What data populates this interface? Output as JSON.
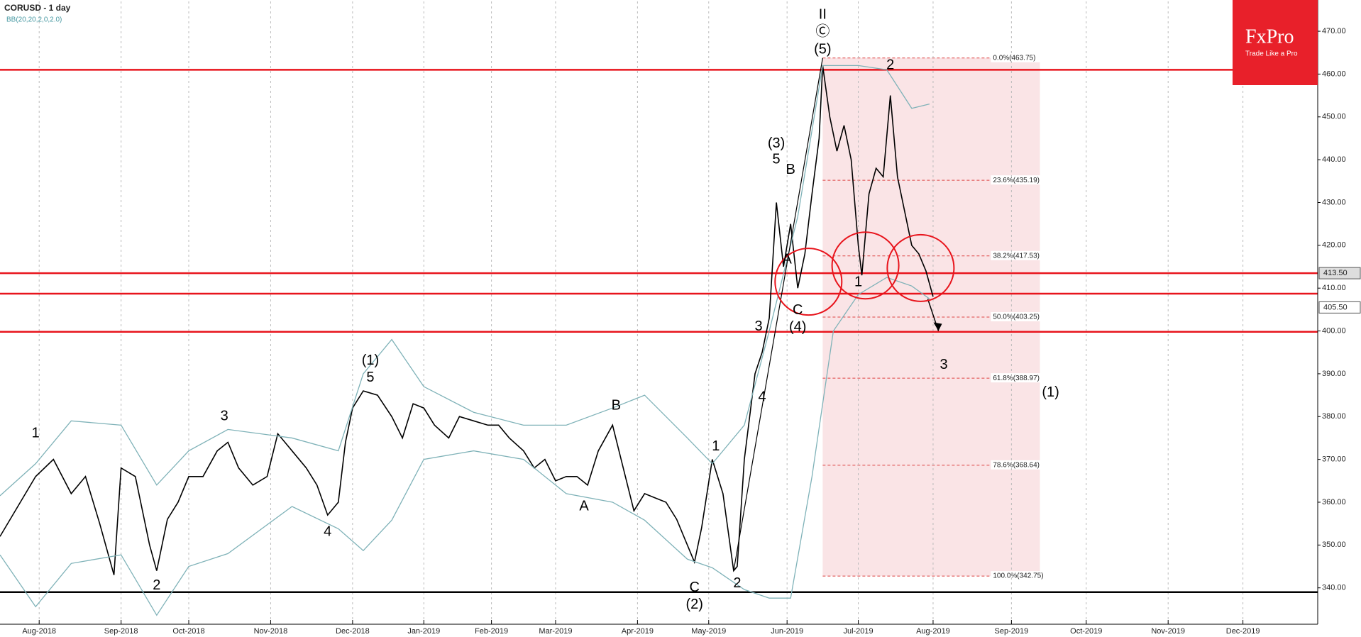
{
  "chart_data": {
    "type": "line",
    "title": "CORUSD - 1 day",
    "subtitle": "BB(20,20,2,0,2.0)",
    "logo": "FxPro",
    "slogan": "Trade Like a Pro",
    "xlim": [
      0,
      370
    ],
    "ylim": [
      331.5,
      477.3
    ],
    "xticks": [
      {
        "value": 11,
        "label": "Aug-2018"
      },
      {
        "value": 34,
        "label": "Sep-2018"
      },
      {
        "value": 53,
        "label": "Oct-2018"
      },
      {
        "value": 76,
        "label": "Nov-2018"
      },
      {
        "value": 99,
        "label": "Dec-2018"
      },
      {
        "value": 119,
        "label": "Jan-2019"
      },
      {
        "value": 138,
        "label": "Feb-2019"
      },
      {
        "value": 156,
        "label": "Mar-2019"
      },
      {
        "value": 179,
        "label": "Apr-2019"
      },
      {
        "value": 199,
        "label": "May-2019"
      },
      {
        "value": 221,
        "label": "Jun-2019"
      },
      {
        "value": 241,
        "label": "Jul-2019"
      },
      {
        "value": 262,
        "label": "Aug-2019"
      },
      {
        "value": 284,
        "label": "Sep-2019"
      },
      {
        "value": 305,
        "label": "Oct-2019"
      },
      {
        "value": 328,
        "label": "Nov-2019"
      },
      {
        "value": 349,
        "label": "Dec-2019"
      }
    ],
    "yticks": [
      {
        "value": 340,
        "label": "340.00"
      },
      {
        "value": 350,
        "label": "350.00"
      },
      {
        "value": 360,
        "label": "360.00"
      },
      {
        "value": 370,
        "label": "370.00"
      },
      {
        "value": 380,
        "label": "380.00"
      },
      {
        "value": 390,
        "label": "390.00"
      },
      {
        "value": 400,
        "label": "400.00"
      },
      {
        "value": 410,
        "label": "410.00"
      },
      {
        "value": 420,
        "label": "420.00"
      },
      {
        "value": 430,
        "label": "430.00"
      },
      {
        "value": 440,
        "label": "440.00"
      },
      {
        "value": 450,
        "label": "450.00"
      },
      {
        "value": 460,
        "label": "460.00"
      },
      {
        "value": 470,
        "label": "470.00"
      }
    ],
    "series": [
      {
        "color": "#000000",
        "x": [
          0,
          10,
          15,
          20,
          24,
          28,
          32,
          34,
          38,
          42,
          44,
          47,
          50,
          53,
          57,
          61,
          64,
          67,
          71,
          75,
          78,
          82,
          86,
          89,
          92,
          95,
          97,
          99,
          102,
          106,
          110,
          113,
          116,
          119,
          122,
          126,
          129,
          133,
          137,
          140,
          143,
          147,
          150,
          153,
          156,
          159,
          162,
          165,
          168,
          172,
          175,
          178,
          181,
          184,
          187,
          190,
          193,
          195,
          197,
          200,
          203,
          206,
          207,
          209,
          212,
          214,
          216,
          218,
          220,
          222,
          224,
          226,
          228,
          230,
          231,
          233,
          235,
          237,
          239,
          241,
          242,
          244,
          246,
          248,
          250,
          252,
          254,
          256,
          258,
          260,
          262
        ],
        "values": [
          352,
          366,
          370,
          362,
          366,
          355,
          343,
          368,
          366,
          350,
          344,
          356,
          360,
          366,
          366,
          372,
          374,
          368,
          364,
          366,
          376,
          372,
          368,
          364,
          357,
          360,
          374,
          382,
          386,
          385,
          380,
          375,
          383,
          382,
          378,
          375,
          380,
          379,
          378,
          378,
          375,
          372,
          368,
          370,
          365,
          366,
          366,
          364,
          372,
          378,
          368,
          358,
          362,
          361,
          360,
          356,
          350,
          346,
          354,
          370,
          362,
          344,
          345,
          370,
          390,
          395,
          403,
          430,
          415,
          425,
          410,
          418,
          432,
          445,
          462,
          450,
          442,
          448,
          440,
          420,
          413,
          432,
          438,
          436,
          455,
          436,
          428,
          420,
          418,
          414,
          408
        ]
      },
      {
        "color": "#7fb2b8",
        "x": [
          0,
          10,
          20,
          34,
          44,
          53,
          64,
          82,
          95,
          102,
          110,
          119,
          133,
          147,
          159,
          172,
          181,
          193,
          200,
          209,
          216,
          224,
          231,
          241,
          249,
          256,
          261
        ],
        "values": [
          361.5,
          369,
          379,
          378,
          364,
          372,
          377,
          375,
          372,
          390,
          398,
          387,
          381,
          378,
          378,
          382,
          385,
          375,
          369,
          378,
          400,
          426.7,
          462,
          462,
          461,
          452,
          453
        ]
      },
      {
        "color": "#7fb2b8",
        "x": [
          0,
          10,
          20,
          34,
          44,
          53,
          64,
          82,
          95,
          102,
          110,
          119,
          133,
          147,
          159,
          172,
          181,
          193,
          200,
          209,
          216,
          222,
          228,
          234,
          241,
          249,
          256,
          261
        ],
        "values": [
          347.7,
          335.6,
          345.7,
          347.7,
          333.6,
          345,
          348,
          359,
          353.8,
          348.7,
          355.8,
          370,
          372,
          370,
          362,
          360,
          355.8,
          346.7,
          344.7,
          339.6,
          337.6,
          337.6,
          366,
          400,
          408.5,
          412.5,
          410.5,
          407.5
        ]
      }
    ],
    "levels": [
      {
        "value": 461,
        "color": "#e8141c"
      },
      {
        "value": 413.5,
        "color": "#e8141c"
      },
      {
        "value": 408.7,
        "color": "#e8141c"
      },
      {
        "value": 399.8,
        "color": "#e8141c"
      },
      {
        "value": 339,
        "color": "#000000"
      }
    ],
    "price_markers": [
      {
        "value": 413.5,
        "label": "413.50"
      },
      {
        "value": 405.5,
        "label": "405.50"
      }
    ],
    "fib_x": [
      231,
      292
    ],
    "fib_levels": [
      {
        "value": 463.75,
        "label": "0.0%(463.75)"
      },
      {
        "value": 435.19,
        "label": "23.6%(435.19)"
      },
      {
        "value": 417.53,
        "label": "38.2%(417.53)"
      },
      {
        "value": 403.25,
        "label": "50.0%(403.25)"
      },
      {
        "value": 388.97,
        "label": "61.8%(388.97)"
      },
      {
        "value": 368.64,
        "label": "78.6%(368.64)"
      },
      {
        "value": 342.75,
        "label": "100.0%(342.75)"
      }
    ],
    "circles": [
      {
        "x": 227,
        "y": 411.5
      },
      {
        "x": 243,
        "y": 415.3
      },
      {
        "x": 258.5,
        "y": 414.7
      }
    ],
    "trend_line": {
      "x": [
        206,
        231
      ],
      "y": [
        344,
        463.75
      ]
    },
    "arrow": {
      "x": [
        260.5,
        263.5
      ],
      "y": [
        407.5,
        400
      ]
    },
    "annotations": [
      {
        "x": 10,
        "y": 376,
        "text": "1"
      },
      {
        "x": 44,
        "y": 340.5,
        "text": "2"
      },
      {
        "x": 63,
        "y": 380,
        "text": "3"
      },
      {
        "x": 92,
        "y": 353,
        "text": "4"
      },
      {
        "x": 104,
        "y": 393,
        "text": "(1)"
      },
      {
        "x": 104,
        "y": 389,
        "text": "5"
      },
      {
        "x": 164,
        "y": 359,
        "text": "A"
      },
      {
        "x": 173,
        "y": 382.5,
        "text": "B"
      },
      {
        "x": 195,
        "y": 340,
        "text": "C"
      },
      {
        "x": 195,
        "y": 336,
        "text": "(2)"
      },
      {
        "x": 207,
        "y": 341,
        "text": "2"
      },
      {
        "x": 201,
        "y": 373,
        "text": "1"
      },
      {
        "x": 213,
        "y": 401,
        "text": "3"
      },
      {
        "x": 214,
        "y": 384.5,
        "text": "4"
      },
      {
        "x": 218,
        "y": 443.7,
        "text": "(3)"
      },
      {
        "x": 218,
        "y": 440,
        "text": "5"
      },
      {
        "x": 222,
        "y": 437.6,
        "text": "B"
      },
      {
        "x": 221,
        "y": 416.6,
        "text": "A"
      },
      {
        "x": 224,
        "y": 404.8,
        "text": "C"
      },
      {
        "x": 224,
        "y": 400.8,
        "text": "(4)"
      },
      {
        "x": 231,
        "y": 473.8,
        "text": "II"
      },
      {
        "x": 231,
        "y": 469.8,
        "text": "Ⓒ"
      },
      {
        "x": 231,
        "y": 465.7,
        "text": "(5)"
      },
      {
        "x": 241,
        "y": 411.3,
        "text": "1"
      },
      {
        "x": 250,
        "y": 462,
        "text": "2"
      },
      {
        "x": 265,
        "y": 392,
        "text": "3"
      },
      {
        "x": 295,
        "y": 385.6,
        "text": "(1)"
      }
    ]
  }
}
